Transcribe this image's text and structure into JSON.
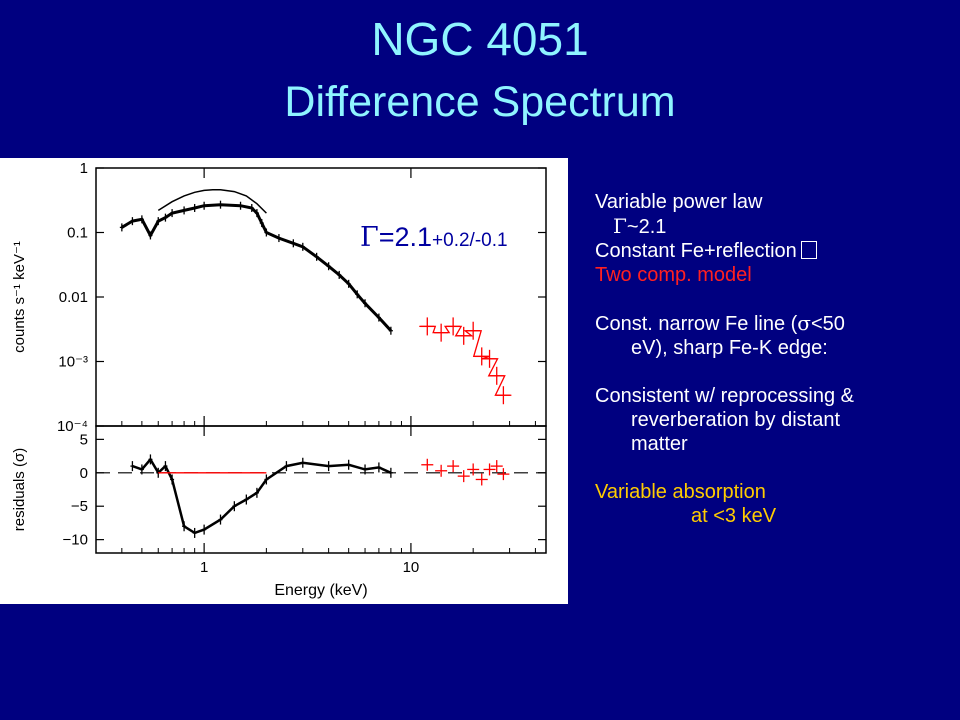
{
  "slide": {
    "title": "NGC 4051",
    "subtitle": "Difference Spectrum",
    "background": "#000080",
    "title_color": "#8ff4ff"
  },
  "figure": {
    "gamma_symbol": "Γ",
    "gamma_value": "=2.1",
    "gamma_error": "+0.2/-0.1"
  },
  "chart_data": [
    {
      "type": "scatter",
      "xscale": "log",
      "yscale": "log",
      "xlim": [
        0.3,
        45
      ],
      "ylim": [
        0.0001,
        1
      ],
      "xlabel": "",
      "ylabel": "counts s⁻¹ keV⁻¹",
      "yticks": [
        "1",
        "0.1",
        "0.01",
        "10⁻³",
        "10⁻⁴"
      ],
      "ytick_values": [
        1,
        0.1,
        0.01,
        0.001,
        0.0001
      ],
      "series": [
        {
          "color": "#000000",
          "x": [
            0.4,
            0.45,
            0.5,
            0.55,
            0.6,
            0.65,
            0.7,
            0.8,
            0.9,
            1.0,
            1.2,
            1.5,
            1.7,
            1.8,
            1.9,
            2.0,
            2.3,
            2.7,
            3.0,
            3.5,
            4.0,
            4.5,
            5.0,
            5.5,
            6.0,
            7.0,
            8.0
          ],
          "y": [
            0.12,
            0.15,
            0.16,
            0.09,
            0.15,
            0.17,
            0.2,
            0.22,
            0.24,
            0.26,
            0.27,
            0.26,
            0.24,
            0.2,
            0.14,
            0.1,
            0.082,
            0.068,
            0.06,
            0.042,
            0.03,
            0.022,
            0.016,
            0.011,
            0.008,
            0.0048,
            0.003
          ]
        },
        {
          "color": "#ff0000",
          "x": [
            12,
            14,
            16,
            18,
            20,
            22,
            24,
            26,
            28
          ],
          "y": [
            0.0035,
            0.0028,
            0.0035,
            0.0025,
            0.003,
            0.0012,
            0.0011,
            0.0006,
            0.0003
          ]
        },
        {
          "color": "#000000",
          "style": "model-line",
          "x": [
            0.6,
            0.7,
            0.8,
            0.9,
            1.0,
            1.1,
            1.2,
            1.4,
            1.6,
            1.8,
            2.0
          ],
          "y": [
            0.22,
            0.3,
            0.37,
            0.42,
            0.45,
            0.46,
            0.46,
            0.43,
            0.37,
            0.28,
            0.2
          ]
        }
      ]
    },
    {
      "type": "scatter",
      "xscale": "log",
      "xlim": [
        0.3,
        45
      ],
      "ylim": [
        -12,
        7
      ],
      "xlabel": "Energy (keV)",
      "ylabel": "residuals (σ)",
      "yticks": [
        "5",
        "0",
        "−5",
        "−10"
      ],
      "ytick_values": [
        5,
        0,
        -5,
        -10
      ],
      "xticks": [
        "1",
        "10"
      ],
      "xtick_values": [
        1,
        10
      ],
      "series": [
        {
          "color": "#000000",
          "x": [
            0.45,
            0.5,
            0.55,
            0.6,
            0.65,
            0.7,
            0.8,
            0.9,
            1.0,
            1.2,
            1.4,
            1.6,
            1.8,
            2.0,
            2.5,
            3.0,
            4.0,
            5.0,
            6.0,
            7.0,
            8.0
          ],
          "y": [
            1,
            0.5,
            2,
            0,
            1,
            -1,
            -8,
            -9,
            -8.5,
            -7,
            -5,
            -4,
            -3,
            -1,
            1,
            1.5,
            1,
            1.2,
            0.5,
            0.8,
            0
          ]
        },
        {
          "color": "#ff0000",
          "x": [
            12,
            14,
            16,
            18,
            20,
            22,
            24,
            26,
            28
          ],
          "y": [
            1.2,
            0.3,
            1,
            -0.5,
            0.5,
            -1,
            0.5,
            1,
            -0.2
          ]
        }
      ]
    }
  ],
  "notes": {
    "line1": "Variable power law",
    "line2_symbol": "Γ",
    "line2_value": "~2.1",
    "line3": "Constant Fe+reflection",
    "line4": "Two comp. model",
    "line5a": "Const. narrow Fe line (",
    "line5_sigma": "σ",
    "line5b": "<50",
    "line6": "eV), sharp Fe-K edge:",
    "line7": "Consistent w/ reprocessing &",
    "line8": "reverberation by distant",
    "line9": "matter",
    "line10": "Variable absorption",
    "line11": "at <3 keV",
    "text_color": "#ffffff",
    "accent_red": "#ff2020",
    "accent_yellow": "#ffcc00"
  }
}
